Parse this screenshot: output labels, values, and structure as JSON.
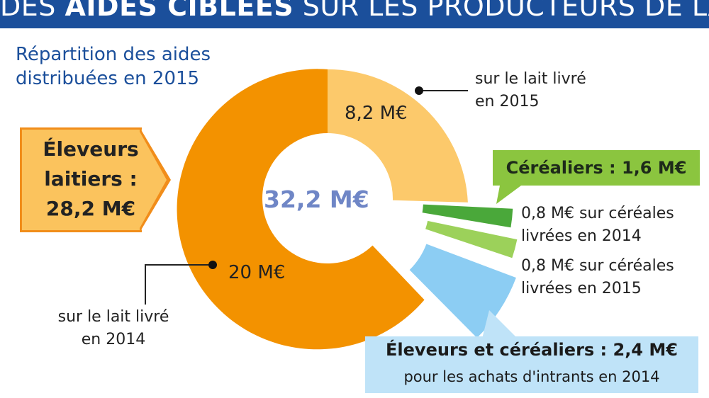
{
  "banner": {
    "before": "DES ",
    "bold": "AIDES CIBLÉES",
    "after": " SUR LES PRODUCTEURS DE LAIT"
  },
  "subtitle_line1": "Répartition des aides",
  "subtitle_line2": "distribuées en 2015",
  "total_label": "32,2 M€",
  "callouts": {
    "eleveurs_laitiers_line1": "Éleveurs",
    "eleveurs_laitiers_line2": "laitiers :",
    "eleveurs_laitiers_line3": "28,2 M€",
    "cerealiers": "Céréaliers : 1,6 M€",
    "eleveurs_cerealiers_title": "Éleveurs et céréaliers : 2,4 M€",
    "eleveurs_cerealiers_sub": "pour les achats d'intrants en 2014"
  },
  "labels": {
    "lait_2015_line1": "sur le lait livré",
    "lait_2015_line2": "en 2015",
    "lait_2014_line1": "sur le lait livré",
    "lait_2014_line2": "en 2014",
    "cereales_2014_line1": "0,8 M€ sur céréales",
    "cereales_2014_line2": "livrées en 2014",
    "cereales_2015_line1": "0,8 M€ sur céréales",
    "cereales_2015_line2": "livrées en 2015"
  },
  "colors": {
    "banner": "#1b4f9b",
    "lait_2014": "#f39200",
    "lait_2015": "#fcc96b",
    "cereales_2014": "#4aa83a",
    "cereales_2015": "#9cd15a",
    "intrants": "#8ccdf3",
    "center_text": "#6f86c6"
  },
  "chart_data": {
    "type": "pie",
    "title": "Répartition des aides distribuées en 2015",
    "total": 32.2,
    "unit": "M€",
    "slices": [
      {
        "label": "sur le lait livré en 2015",
        "value": 8.2,
        "value_label": "8,2 M€"
      },
      {
        "label": "0,8 M€ sur céréales livrées en 2014",
        "value": 0.8,
        "value_label": ""
      },
      {
        "label": "0,8 M€ sur céréales livrées en 2015",
        "value": 0.8,
        "value_label": ""
      },
      {
        "label": "pour les achats d'intrants en 2014",
        "value": 2.4,
        "value_label": ""
      },
      {
        "label": "sur le lait livré en 2014",
        "value": 20,
        "value_label": "20 M€"
      }
    ],
    "groups": [
      {
        "label": "Éleveurs laitiers : 28,2 M€",
        "value": 28.2
      },
      {
        "label": "Céréaliers : 1,6 M€",
        "value": 1.6
      },
      {
        "label": "Éleveurs et céréaliers : 2,4 M€",
        "value": 2.4
      }
    ]
  }
}
